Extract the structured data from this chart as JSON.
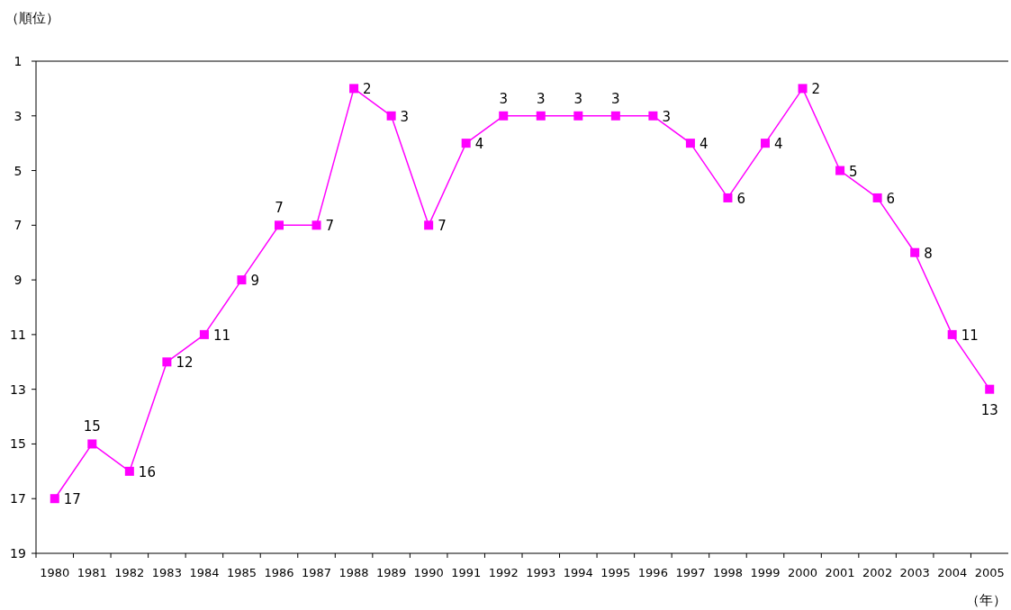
{
  "chart_data": {
    "type": "line",
    "xlabel": "（年）",
    "ylabel": "（順位）",
    "categories": [
      "1980",
      "1981",
      "1982",
      "1983",
      "1984",
      "1985",
      "1986",
      "1987",
      "1988",
      "1989",
      "1990",
      "1991",
      "1992",
      "1993",
      "1994",
      "1995",
      "1996",
      "1997",
      "1998",
      "1999",
      "2000",
      "2001",
      "2002",
      "2003",
      "2004",
      "2005"
    ],
    "series": [
      {
        "color": "#ff00ff",
        "values": [
          17,
          15,
          16,
          12,
          11,
          9,
          7,
          7,
          2,
          3,
          7,
          4,
          3,
          3,
          3,
          3,
          3,
          4,
          6,
          4,
          2,
          5,
          6,
          8,
          11,
          13
        ]
      }
    ],
    "ylim": [
      19,
      1
    ],
    "yticks": [
      1,
      3,
      5,
      7,
      9,
      11,
      13,
      15,
      17,
      19
    ],
    "marker": "square",
    "data_labels": true
  }
}
